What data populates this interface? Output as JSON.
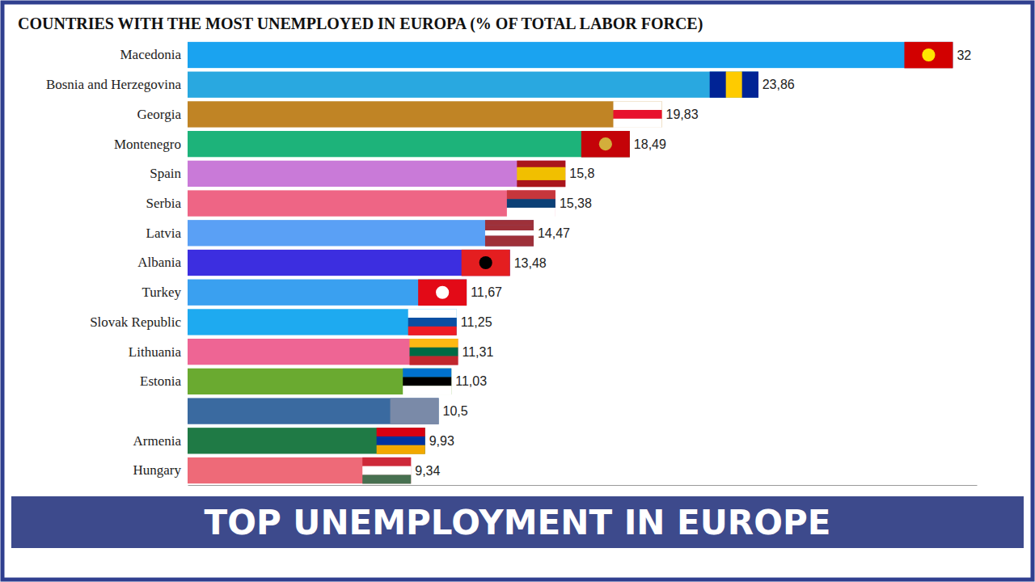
{
  "chart_data": {
    "type": "bar",
    "orientation": "horizontal",
    "title": "COUNTRIES WITH THE MOST UNEMPLOYED IN EUROPA (% OF TOTAL LABOR FORCE)",
    "annotations": [
      "TOP UNEMPLOYMENT IN EUROPE"
    ],
    "categories": [
      "Macedonia",
      "Bosnia and Herzegovina",
      "Georgia",
      "Montenegro",
      "Spain",
      "Serbia",
      "Latvia",
      "Albania",
      "Turkey",
      "Slovak Republic",
      "Lithuania",
      "Estonia",
      null,
      "Armenia",
      "Hungary"
    ],
    "values": [
      32,
      23.86,
      19.83,
      18.49,
      15.8,
      15.38,
      14.47,
      13.48,
      11.67,
      11.25,
      11.31,
      11.03,
      10.5,
      9.93,
      9.34
    ],
    "value_labels": [
      "32",
      "23,86",
      "19,83",
      "18,49",
      "15,8",
      "15,38",
      "14,47",
      "13,48",
      "11,67",
      "11,25",
      "11,31",
      "11,03",
      "10,5",
      "9,93",
      "9,34"
    ],
    "colors": [
      "#1aa3f0",
      "#29a8e0",
      "#c08425",
      "#1db37a",
      "#c97ad8",
      "#ee6585",
      "#5aa0f5",
      "#3c2ee0",
      "#3aa0f0",
      "#1eaaf0",
      "#ee6594",
      "#6aaa30",
      "#3a6aa0",
      "#1f7a45",
      "#ee6a78"
    ],
    "xlim": [
      0,
      33
    ],
    "xticks": [],
    "grid": false,
    "data_labels": true,
    "tick_labels": "y"
  }
}
